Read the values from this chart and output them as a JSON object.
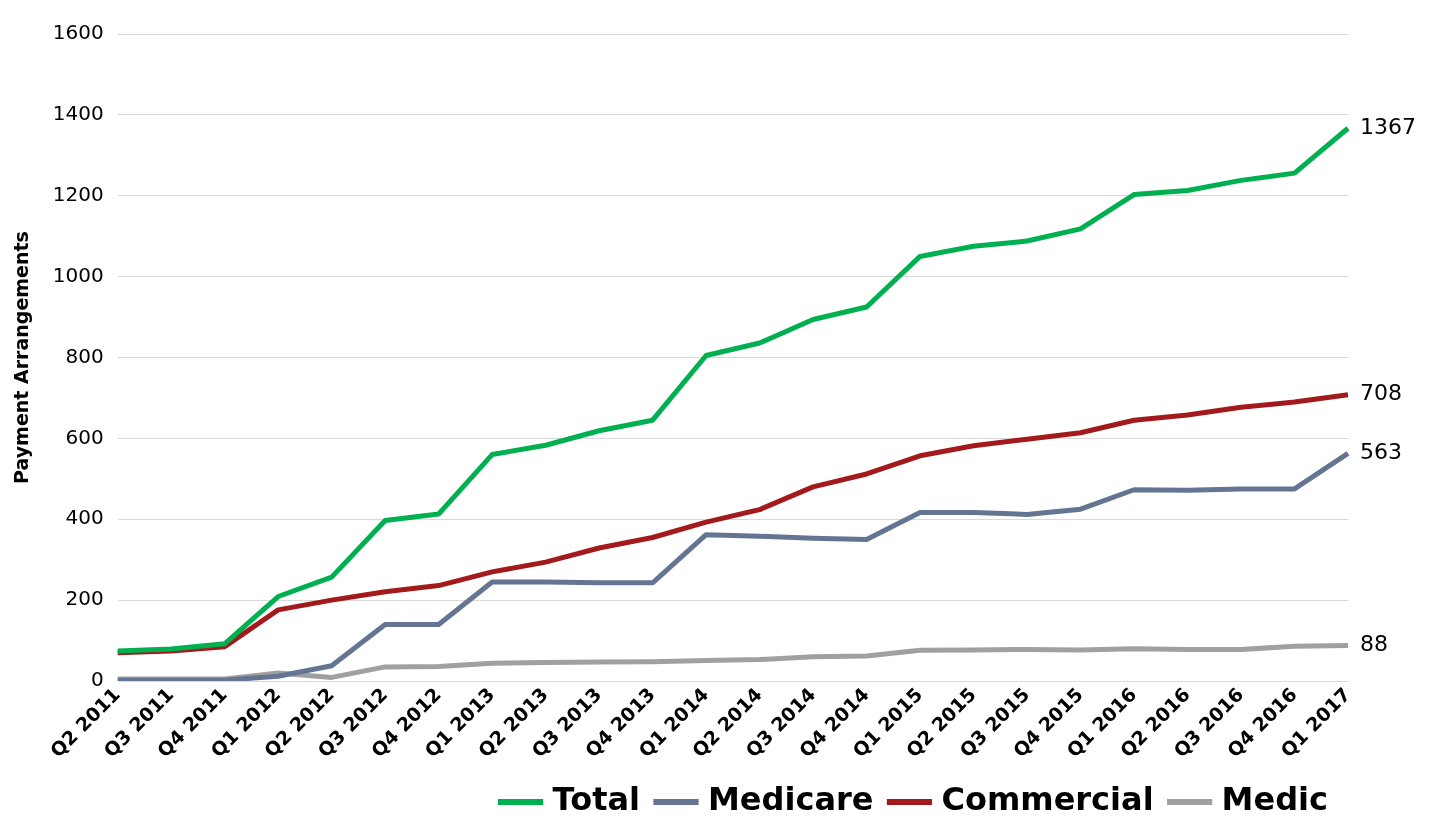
{
  "chart_data": {
    "type": "line",
    "ylabel": "Payment Arrangements",
    "categories": [
      "Q2 2011",
      "Q3 2011",
      "Q4 2011",
      "Q1 2012",
      "Q2 2012",
      "Q3 2012",
      "Q4 2012",
      "Q1 2013",
      "Q2 2013",
      "Q3 2013",
      "Q4 2013",
      "Q1 2014",
      "Q2 2014",
      "Q3 2014",
      "Q4 2014",
      "Q1 2015",
      "Q2 2015",
      "Q3 2015",
      "Q4 2015",
      "Q1 2016",
      "Q2 2016",
      "Q3 2016",
      "Q4 2016",
      "Q1 2017"
    ],
    "series": [
      {
        "name": "Total",
        "color": "#00b050",
        "values": [
          74,
          79,
          92,
          209,
          257,
          397,
          413,
          560,
          583,
          619,
          645,
          805,
          836,
          894,
          925,
          1050,
          1075,
          1088,
          1118,
          1203,
          1213,
          1238,
          1256,
          1367
        ],
        "value_labels": [
          null,
          null,
          null,
          null,
          null,
          null,
          null,
          null,
          null,
          null,
          null,
          null,
          null,
          null,
          null,
          null,
          null,
          null,
          null,
          null,
          null,
          null,
          null,
          "1367"
        ]
      },
      {
        "name": "Medicare",
        "color": "#647594",
        "values": [
          2,
          2,
          2,
          12,
          38,
          140,
          140,
          245,
          245,
          243,
          243,
          362,
          358,
          353,
          350,
          417,
          417,
          412,
          425,
          473,
          472,
          475,
          475,
          563
        ],
        "value_labels": [
          null,
          null,
          null,
          null,
          null,
          null,
          null,
          null,
          null,
          null,
          null,
          null,
          null,
          null,
          null,
          null,
          null,
          null,
          null,
          null,
          null,
          null,
          null,
          "563"
        ]
      },
      {
        "name": "Commercial",
        "color": "#a31a1d",
        "values": [
          70,
          74,
          85,
          176,
          200,
          221,
          236,
          270,
          294,
          329,
          355,
          393,
          424,
          480,
          512,
          557,
          582,
          598,
          614,
          645,
          658,
          677,
          690,
          708
        ],
        "value_labels": [
          null,
          null,
          null,
          null,
          null,
          null,
          null,
          null,
          null,
          null,
          null,
          null,
          null,
          null,
          null,
          null,
          null,
          null,
          null,
          null,
          null,
          null,
          null,
          "708"
        ]
      },
      {
        "name": "Medic",
        "color": "#a0a0a0",
        "values": [
          5,
          5,
          5,
          20,
          9,
          35,
          36,
          44,
          46,
          47,
          48,
          51,
          53,
          60,
          62,
          76,
          77,
          78,
          77,
          80,
          78,
          78,
          86,
          88
        ],
        "value_labels": [
          null,
          null,
          null,
          null,
          null,
          null,
          null,
          null,
          null,
          null,
          null,
          null,
          null,
          null,
          null,
          null,
          null,
          null,
          null,
          null,
          null,
          null,
          null,
          "88"
        ]
      }
    ],
    "ylim": [
      0,
      1600
    ],
    "yticks": [
      0,
      200,
      400,
      600,
      800,
      1000,
      1200,
      1400,
      1600
    ],
    "grid": "y",
    "legend": "bottom right",
    "marker": "none",
    "line_style": "solid"
  }
}
